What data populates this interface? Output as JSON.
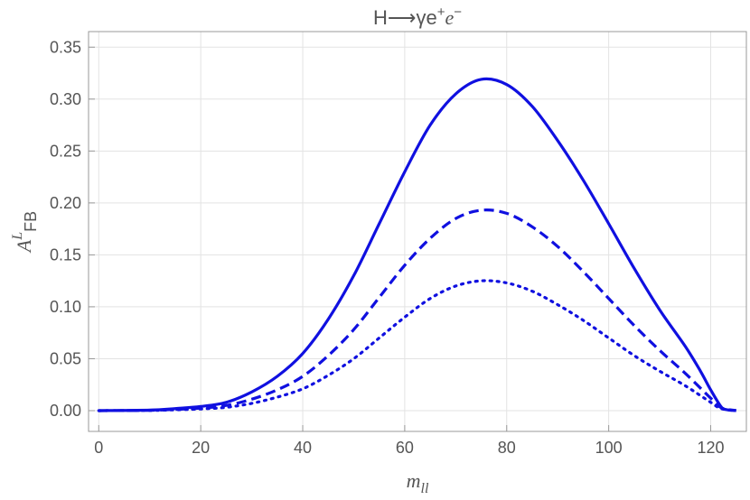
{
  "chart_data": {
    "type": "line",
    "title": {
      "prefix": "H⟶γe",
      "sup1": "+",
      "mid": "e",
      "sup2": "−"
    },
    "xlabel": {
      "main": "m",
      "sub": "ll"
    },
    "ylabel": {
      "main": "A",
      "sup": "L",
      "sub": "FB"
    },
    "xlim": [
      -2,
      127
    ],
    "ylim": [
      -0.02,
      0.365
    ],
    "xticks": [
      0,
      20,
      40,
      60,
      80,
      100,
      120
    ],
    "xtick_labels": [
      "0",
      "20",
      "40",
      "60",
      "80",
      "100",
      "120"
    ],
    "yticks": [
      0.0,
      0.05,
      0.1,
      0.15,
      0.2,
      0.25,
      0.3,
      0.35
    ],
    "ytick_labels": [
      "0.00",
      "0.05",
      "0.10",
      "0.15",
      "0.20",
      "0.25",
      "0.30",
      "0.35"
    ],
    "grid": true,
    "color": "#1010e0",
    "series": [
      {
        "style": "solid",
        "x": [
          0,
          10,
          15,
          20,
          25,
          30,
          35,
          40,
          45,
          50,
          55,
          60,
          65,
          70,
          75,
          80,
          85,
          90,
          95,
          100,
          105,
          110,
          115,
          118,
          120,
          122,
          123,
          125
        ],
        "y": [
          0.0,
          0.0005,
          0.002,
          0.004,
          0.008,
          0.018,
          0.033,
          0.055,
          0.088,
          0.13,
          0.18,
          0.23,
          0.275,
          0.305,
          0.319,
          0.314,
          0.293,
          0.26,
          0.222,
          0.18,
          0.137,
          0.097,
          0.062,
          0.038,
          0.02,
          0.004,
          0.001,
          0.0
        ]
      },
      {
        "style": "dashed",
        "x": [
          0,
          10,
          15,
          20,
          25,
          30,
          35,
          40,
          45,
          50,
          55,
          60,
          65,
          70,
          75,
          80,
          85,
          90,
          95,
          100,
          105,
          110,
          115,
          120,
          122,
          125
        ],
        "y": [
          0.0,
          0.0003,
          0.0012,
          0.0025,
          0.005,
          0.011,
          0.02,
          0.033,
          0.053,
          0.078,
          0.109,
          0.14,
          0.166,
          0.185,
          0.193,
          0.19,
          0.177,
          0.158,
          0.134,
          0.108,
          0.082,
          0.058,
          0.036,
          0.012,
          0.003,
          0.0
        ]
      },
      {
        "style": "dotted",
        "x": [
          0,
          10,
          15,
          20,
          25,
          30,
          35,
          40,
          45,
          50,
          55,
          60,
          65,
          70,
          75,
          80,
          85,
          90,
          95,
          100,
          105,
          110,
          115,
          120,
          122,
          125
        ],
        "y": [
          0.0,
          0.0002,
          0.0008,
          0.0016,
          0.0032,
          0.007,
          0.013,
          0.021,
          0.034,
          0.05,
          0.07,
          0.09,
          0.108,
          0.12,
          0.125,
          0.123,
          0.115,
          0.102,
          0.087,
          0.07,
          0.053,
          0.038,
          0.024,
          0.008,
          0.002,
          0.0
        ]
      }
    ]
  }
}
